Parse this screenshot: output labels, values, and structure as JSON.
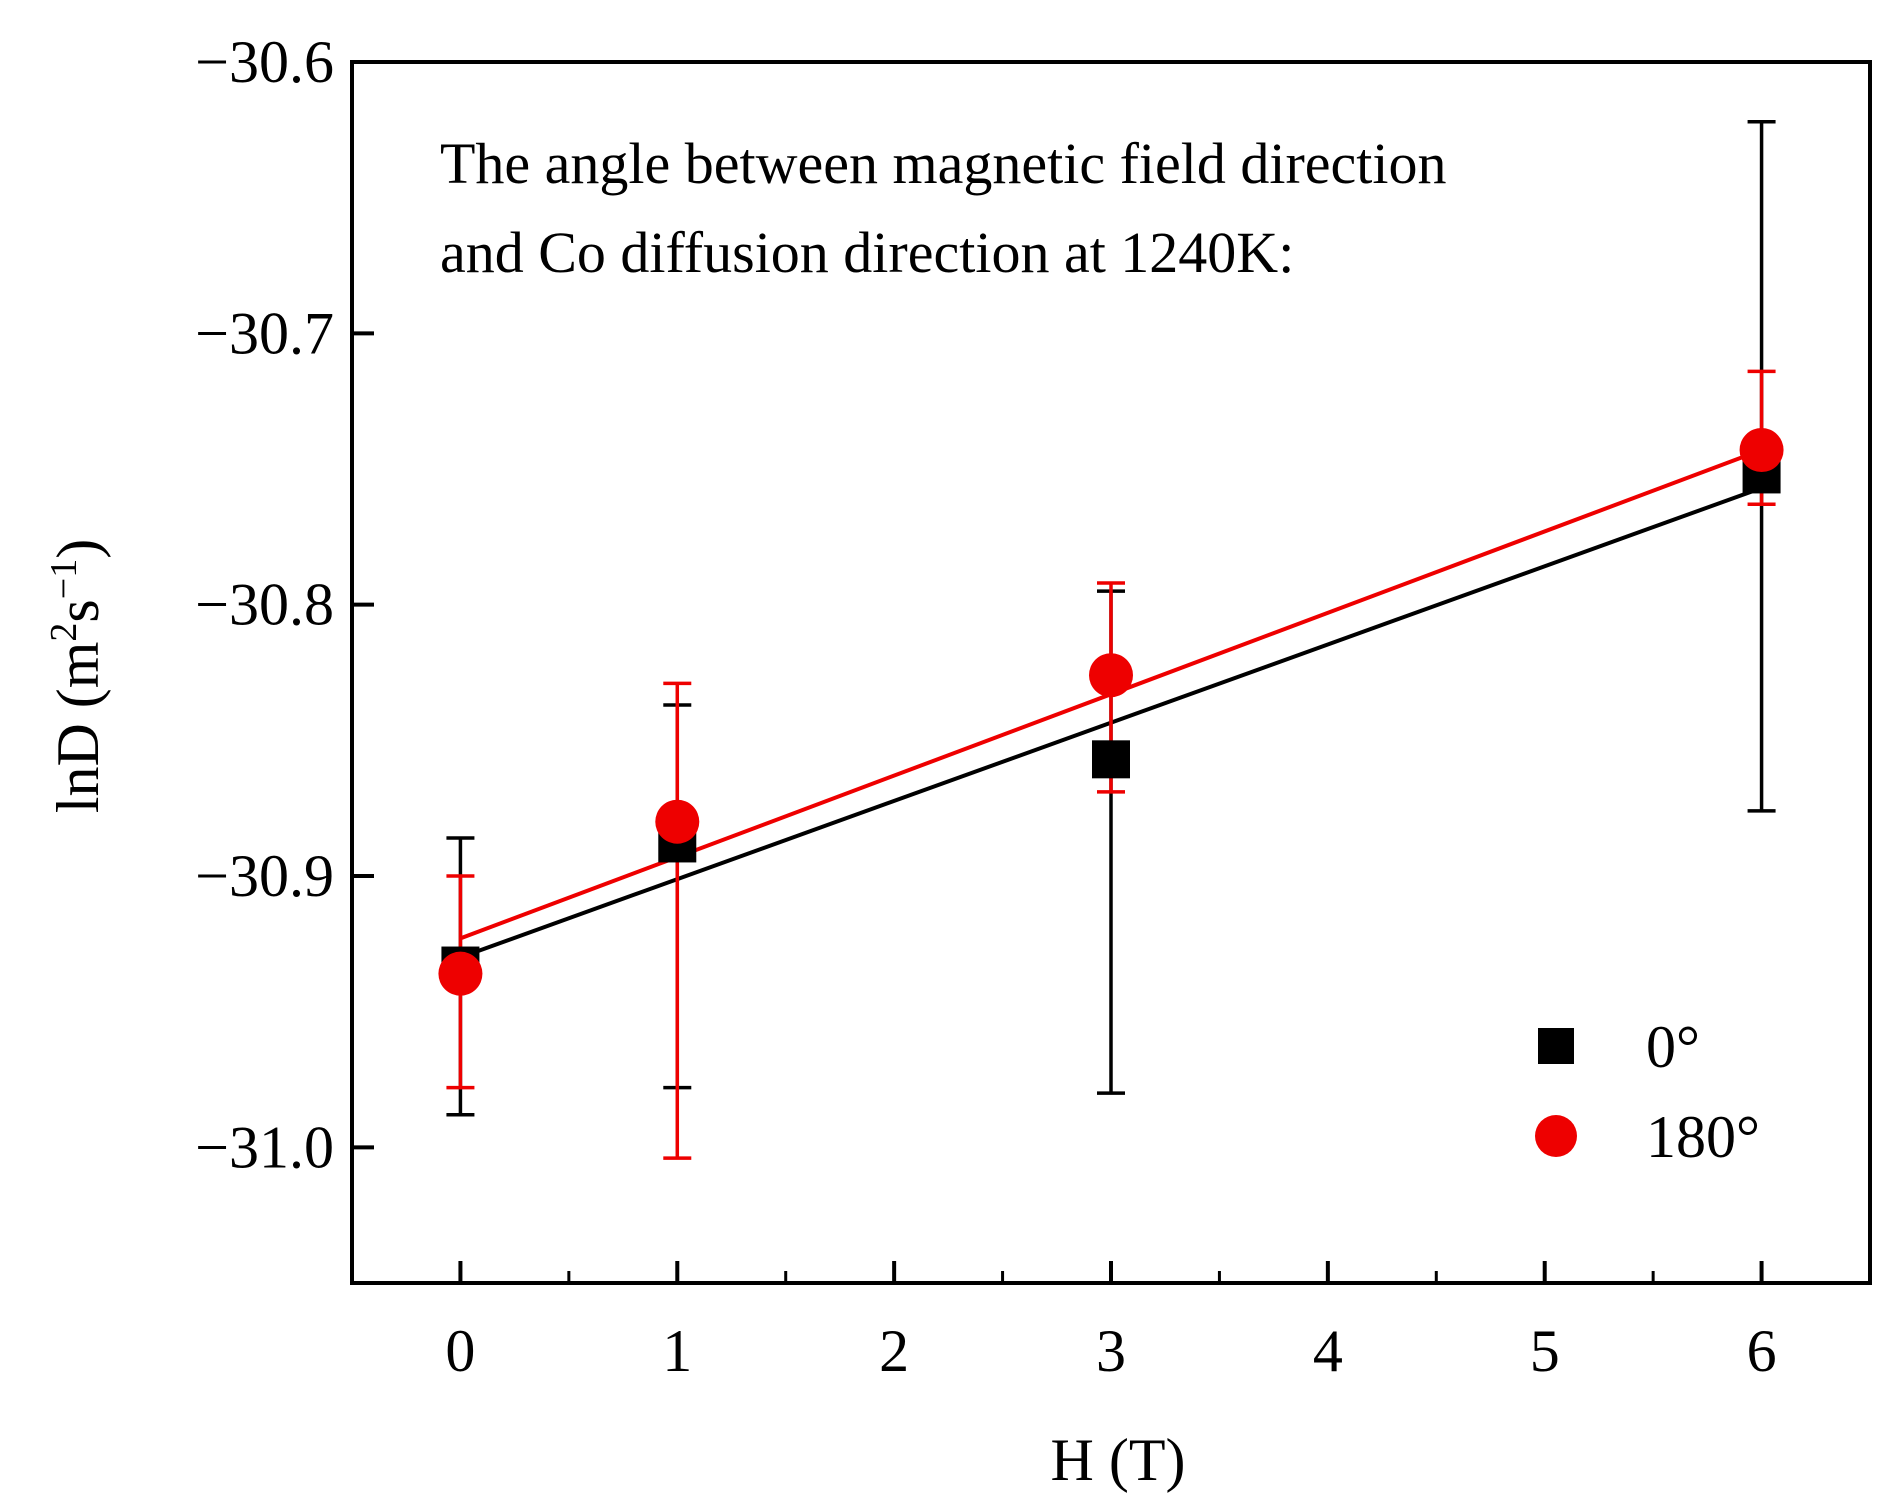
{
  "chart_data": {
    "type": "scatter",
    "xlabel": "H (T)",
    "ylabel": {
      "prefix": "lnD (m",
      "sup1": "2",
      "mid": "s",
      "sup2": "−1",
      "suffix": ")"
    },
    "xlim": [
      -0.5,
      6.5
    ],
    "ylim": [
      -31.05,
      -30.6
    ],
    "x_ticks": [
      0,
      1,
      2,
      3,
      4,
      5,
      6
    ],
    "x_tick_labels": [
      "0",
      "1",
      "2",
      "3",
      "4",
      "5",
      "6"
    ],
    "y_ticks": [
      -30.6,
      -30.7,
      -30.8,
      -30.9,
      -31.0
    ],
    "y_tick_labels": [
      "−30.6",
      "−30.7",
      "−30.8",
      "−30.9",
      "−31.0"
    ],
    "annotation": [
      "The angle between magnetic field direction",
      "and Co diffusion direction at 1240K:"
    ],
    "legend_position": "bottom-right",
    "grid": false,
    "series": [
      {
        "name": "0°",
        "marker": "square",
        "color": "#000000",
        "x": [
          0,
          1,
          3,
          6
        ],
        "y": [
          -30.933,
          -30.888,
          -30.857,
          -30.752
        ],
        "err_upper": [
          -30.886,
          -30.837,
          -30.795,
          -30.622
        ],
        "err_lower": [
          -30.988,
          -30.978,
          -30.98,
          -30.876
        ],
        "fit": {
          "x": [
            0,
            6
          ],
          "y": [
            -30.93,
            -30.757
          ]
        }
      },
      {
        "name": "180°",
        "marker": "circle",
        "color": "#ee0000",
        "x": [
          0,
          1,
          3,
          6
        ],
        "y": [
          -30.936,
          -30.88,
          -30.826,
          -30.743
        ],
        "err_upper": [
          -30.9,
          -30.829,
          -30.792,
          -30.714
        ],
        "err_lower": [
          -30.978,
          -31.004,
          -30.869,
          -30.763
        ],
        "fit": {
          "x": [
            0,
            6
          ],
          "y": [
            -30.923,
            -30.743
          ]
        }
      }
    ]
  }
}
